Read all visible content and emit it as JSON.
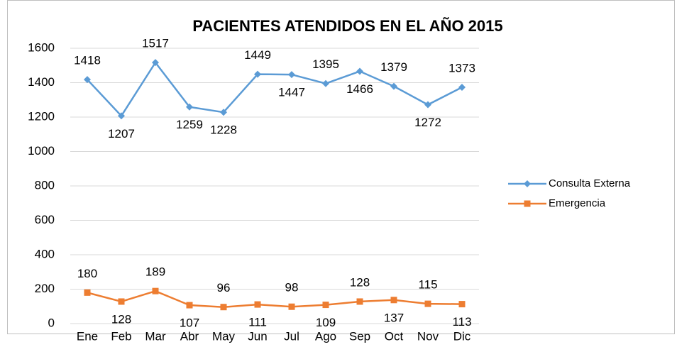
{
  "chart_data": {
    "type": "line",
    "title": "PACIENTES ATENDIDOS EN EL AÑO 2015",
    "categories": [
      "Ene",
      "Feb",
      "Mar",
      "Abr",
      "May",
      "Jun",
      "Jul",
      "Ago",
      "Sep",
      "Oct",
      "Nov",
      "Dic"
    ],
    "series": [
      {
        "name": "Consulta Externa",
        "color": "#5b9bd5",
        "values": [
          1418,
          1207,
          1517,
          1259,
          1228,
          1449,
          1447,
          1395,
          1466,
          1379,
          1272,
          1373
        ]
      },
      {
        "name": "Emergencia",
        "color": "#ed7d31",
        "values": [
          180,
          128,
          189,
          107,
          96,
          111,
          98,
          109,
          128,
          137,
          115,
          113
        ]
      }
    ],
    "ylim": [
      0,
      1600
    ],
    "yticks": [
      0,
      200,
      400,
      600,
      800,
      1000,
      1200,
      1400,
      1600
    ],
    "grid": true,
    "legend": "right"
  }
}
